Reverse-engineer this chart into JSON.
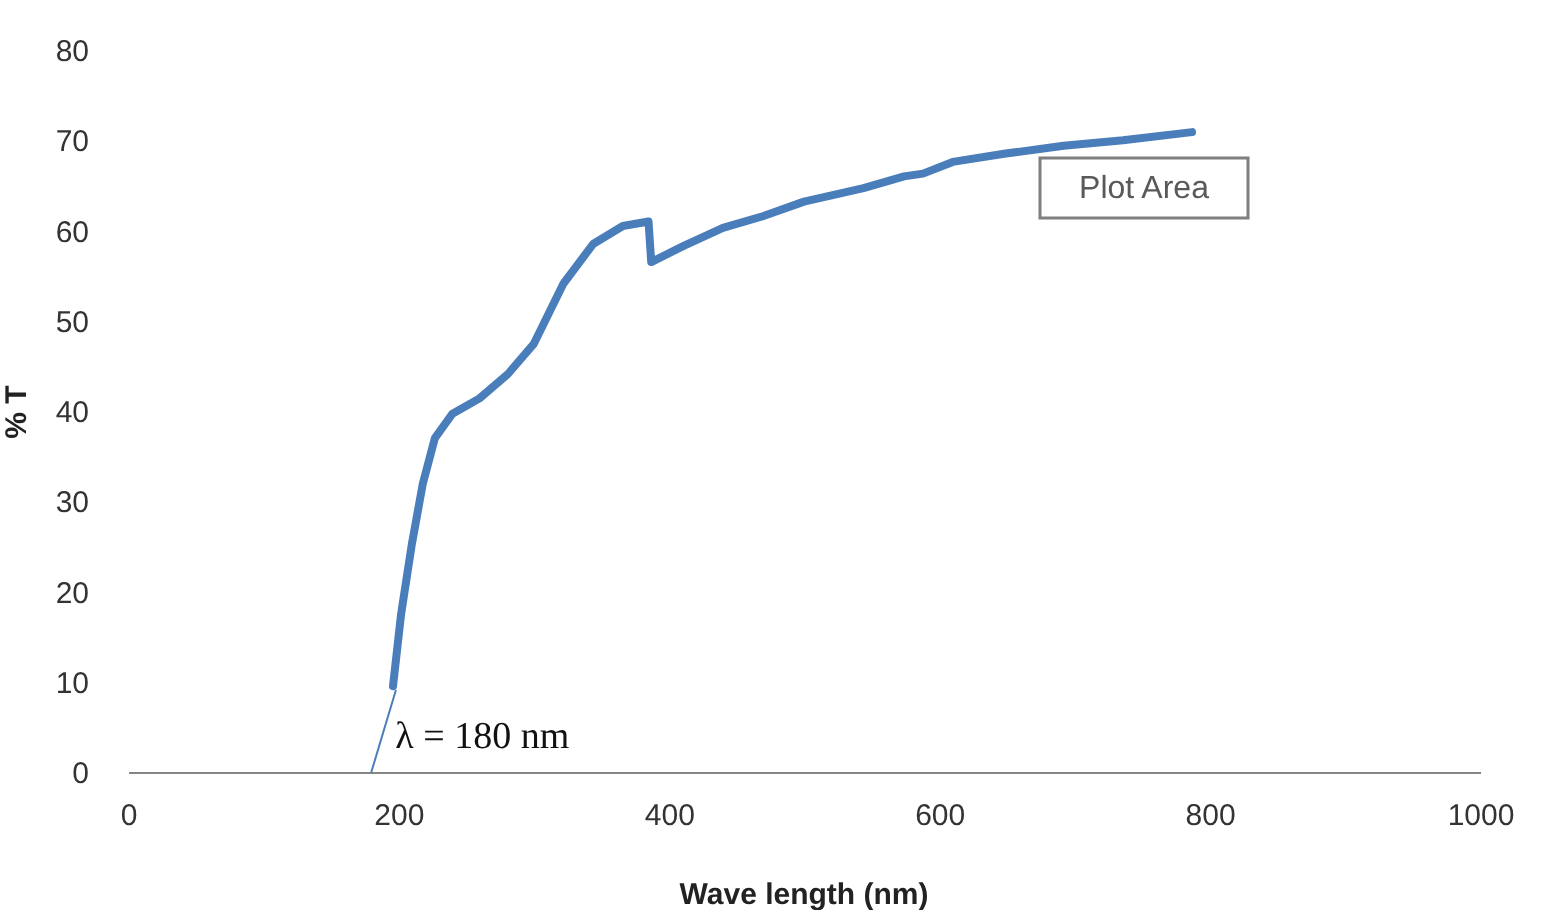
{
  "chart_data": {
    "type": "line",
    "xlabel": "Wave length (nm)",
    "ylabel": "% T",
    "xlim": [
      0,
      1000
    ],
    "xticks": [
      0,
      200,
      400,
      600,
      800,
      1000
    ],
    "ylim": [
      0,
      80
    ],
    "yticks": [
      0,
      10,
      20,
      30,
      40,
      50,
      60,
      70,
      80
    ],
    "grid": false,
    "series": [
      {
        "color": "#4a7ebb",
        "x": [
          196,
          202,
          210,
          218,
          227,
          240,
          260,
          281,
          300,
          322,
          344,
          366,
          385,
          387,
          411,
          440,
          470,
          500,
          544,
          574,
          588,
          610,
          648,
          692,
          736,
          787
        ],
        "values": [
          9.5,
          17.5,
          25.3,
          31.9,
          37,
          39.7,
          41.4,
          44.1,
          47.4,
          54.1,
          58.5,
          60.5,
          61,
          56.5,
          58.3,
          60.3,
          61.6,
          63.2,
          64.7,
          66,
          66.3,
          67.6,
          68.5,
          69.4,
          70,
          70.9
        ]
      },
      {
        "type": "line",
        "color": "#4a7ebb",
        "x": [
          180,
          198
        ],
        "values": [
          0,
          9
        ]
      }
    ],
    "annotations": [
      {
        "text": "λ = 180 nm",
        "x": 180,
        "y": 0
      },
      "Plot Area"
    ]
  }
}
